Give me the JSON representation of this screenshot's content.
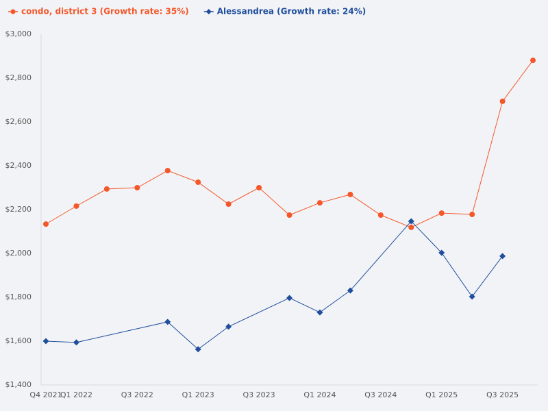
{
  "chart_data": {
    "type": "line",
    "categories": [
      "Q4 2021",
      "Q1 2022",
      null,
      "Q3 2022",
      null,
      "Q1 2023",
      null,
      "Q3 2023",
      null,
      "Q1 2024",
      null,
      "Q3 2024",
      null,
      "Q1 2025",
      null,
      "Q3 2025",
      null
    ],
    "series": [
      {
        "name": "condo, district 3 (Growth rate: 35%)",
        "color": "#f4572a",
        "marker": "circle",
        "values": [
          2134,
          2216,
          2294,
          2300,
          2378,
          2325,
          2225,
          2300,
          2175,
          2231,
          2269,
          2175,
          2119,
          2184,
          2178,
          2694,
          2881
        ]
      },
      {
        "name": "Alessandrea (Growth rate: 24%)",
        "color": "#1f4e9c",
        "marker": "diamond",
        "values": [
          1600,
          1594,
          null,
          null,
          1688,
          1563,
          1666,
          null,
          1797,
          1731,
          1831,
          null,
          2147,
          2003,
          1803,
          1988,
          null
        ]
      }
    ],
    "connect_gaps": true,
    "ylim": [
      1400,
      3000
    ],
    "yticks": [
      {
        "value": 1400,
        "label": "$1,400"
      },
      {
        "value": 1600,
        "label": "$1,600"
      },
      {
        "value": 1800,
        "label": "$1,800"
      },
      {
        "value": 2000,
        "label": "$2,000"
      },
      {
        "value": 2200,
        "label": "$2,200"
      },
      {
        "value": 2400,
        "label": "$2,400"
      },
      {
        "value": 2600,
        "label": "$2,600"
      },
      {
        "value": 2800,
        "label": "$2,800"
      },
      {
        "value": 3000,
        "label": "$3,000"
      }
    ],
    "grid": false,
    "legend": "top-left"
  }
}
